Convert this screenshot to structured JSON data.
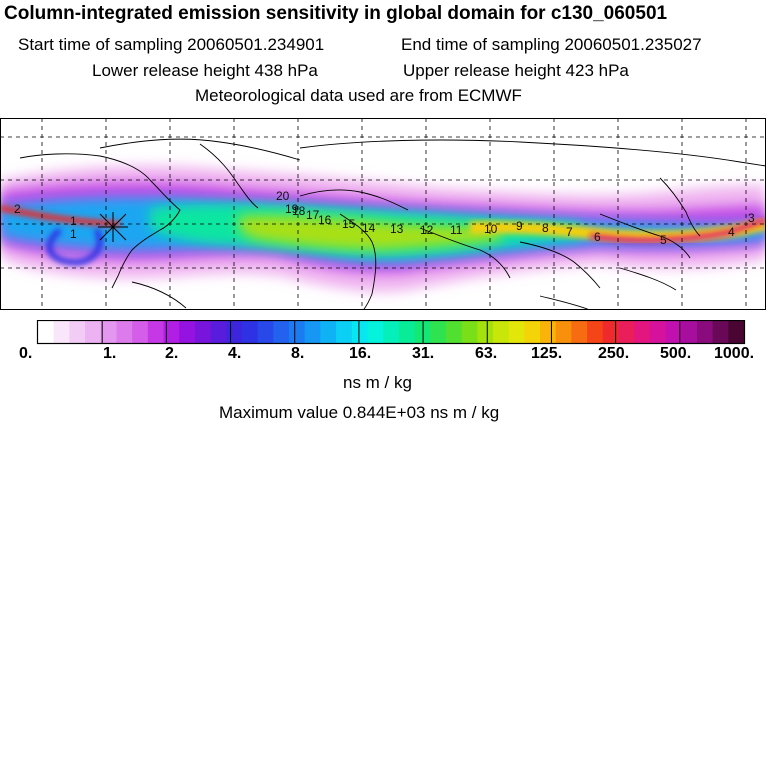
{
  "header": {
    "title": "Column-integrated emission sensitivity in global domain for c130_060501",
    "start_time": "Start time of sampling 20060501.234901",
    "end_time": "End time of sampling 20060501.235027",
    "lower_release": "Lower release height  438 hPa",
    "upper_release": "Upper release height  423 hPa",
    "met_data": "Meteorological data used are from ECMWF"
  },
  "colorbar": {
    "labels": [
      "0.",
      "1.",
      "2.",
      "4.",
      "8.",
      "16.",
      "31.",
      "63.",
      "125.",
      "250.",
      "500.",
      "1000."
    ],
    "colors": [
      "#ffffff",
      "#fae6fb",
      "#f3ccf6",
      "#ecb2f2",
      "#e497ee",
      "#dc7cec",
      "#d45eea",
      "#c638e6",
      "#b01fe3",
      "#9512e0",
      "#7914dd",
      "#5a1cdc",
      "#3d25de",
      "#2e32e4",
      "#2848ea",
      "#2262ee",
      "#1b7cf1",
      "#1597f3",
      "#0fb3f5",
      "#0bcff5",
      "#07e7f2",
      "#05f2dc",
      "#05efbb",
      "#08ec97",
      "#14e874",
      "#2fe350",
      "#51df30",
      "#79df18",
      "#a3e20d",
      "#c8e60a",
      "#e3e709",
      "#f4d308",
      "#f9b309",
      "#f9900b",
      "#f76c10",
      "#f44418",
      "#ef2a2c",
      "#e91e5a",
      "#e3157f",
      "#d6129d",
      "#c210b0",
      "#a80e9e",
      "#8a0b7e",
      "#6a0858",
      "#4a0533"
    ],
    "units": "ns m / kg"
  },
  "map": {
    "plume_labels": [
      "2",
      "1",
      "1",
      "20",
      "19",
      "18",
      "17",
      "16",
      "15",
      "14",
      "13",
      "12",
      "11",
      "10",
      "9",
      "8",
      "7",
      "6",
      "5",
      "4",
      "3"
    ]
  },
  "footer": {
    "max_value": "Maximum value  0.844E+03 ns m / kg"
  }
}
